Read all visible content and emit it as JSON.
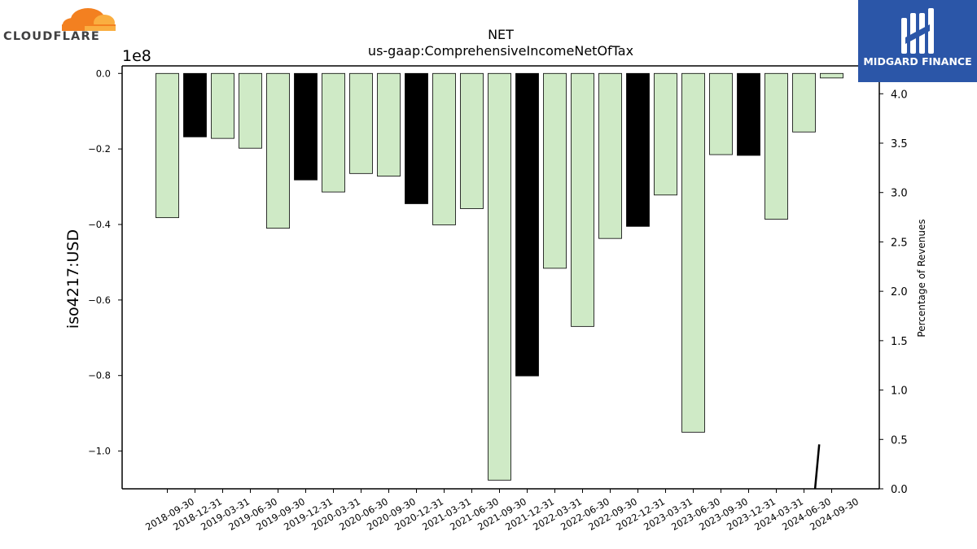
{
  "logos": {
    "left_text": "CLOUDFLARE",
    "right_text": "MIDGARD FINANCE",
    "left_color": "#f38020",
    "right_bg": "#2b56a8"
  },
  "chart_data": {
    "type": "bar",
    "title": "NET",
    "subtitle": "us-gaap:ComprehensiveIncomeNetOfTax",
    "ylabel": "iso4217:USD",
    "y2label": "Percentage of Revenues",
    "y_multiplier_label": "1e8",
    "ylim": [
      -1.1,
      0.02
    ],
    "y_ticks": [
      "0.0",
      "−0.2",
      "−0.4",
      "−0.6",
      "−0.8",
      "−1.0"
    ],
    "y2lim": [
      0,
      4.2
    ],
    "y2_ticks": [
      "0.0",
      "0.5",
      "1.0",
      "1.5",
      "2.0",
      "2.5",
      "3.0",
      "3.5",
      "4.0"
    ],
    "grid": false,
    "colors": {
      "light": "#cfeac6",
      "dark": "#000000",
      "edge": "#000000"
    },
    "categories": [
      "2018-09-30",
      "2018-12-31",
      "2019-03-31",
      "2019-06-30",
      "2019-09-30",
      "2019-12-31",
      "2020-03-31",
      "2020-06-30",
      "2020-09-30",
      "2020-12-31",
      "2021-03-31",
      "2021-06-30",
      "2021-09-30",
      "2021-12-31",
      "2022-03-31",
      "2022-06-30",
      "2022-09-30",
      "2022-12-31",
      "2023-03-31",
      "2023-06-30",
      "2023-09-30",
      "2023-12-31",
      "2024-03-31",
      "2024-06-30",
      "2024-09-30"
    ],
    "values": [
      -0.382,
      -0.168,
      -0.172,
      -0.198,
      -0.41,
      -0.282,
      -0.314,
      -0.265,
      -0.272,
      -0.345,
      -0.401,
      -0.358,
      -1.077,
      -0.801,
      -0.516,
      -0.67,
      -0.437,
      -0.405,
      -0.322,
      -0.95,
      -0.215,
      -0.217,
      -0.386,
      -0.155,
      -0.012
    ],
    "bar_styles": [
      "light",
      "dark",
      "light",
      "light",
      "light",
      "dark",
      "light",
      "light",
      "light",
      "dark",
      "light",
      "light",
      "light",
      "dark",
      "light",
      "light",
      "light",
      "dark",
      "light",
      "light",
      "light",
      "dark",
      "light",
      "light",
      "light"
    ],
    "secondary_line": {
      "x_index": [
        23.4,
        23.55
      ],
      "values": [
        0.0,
        0.45
      ]
    }
  }
}
